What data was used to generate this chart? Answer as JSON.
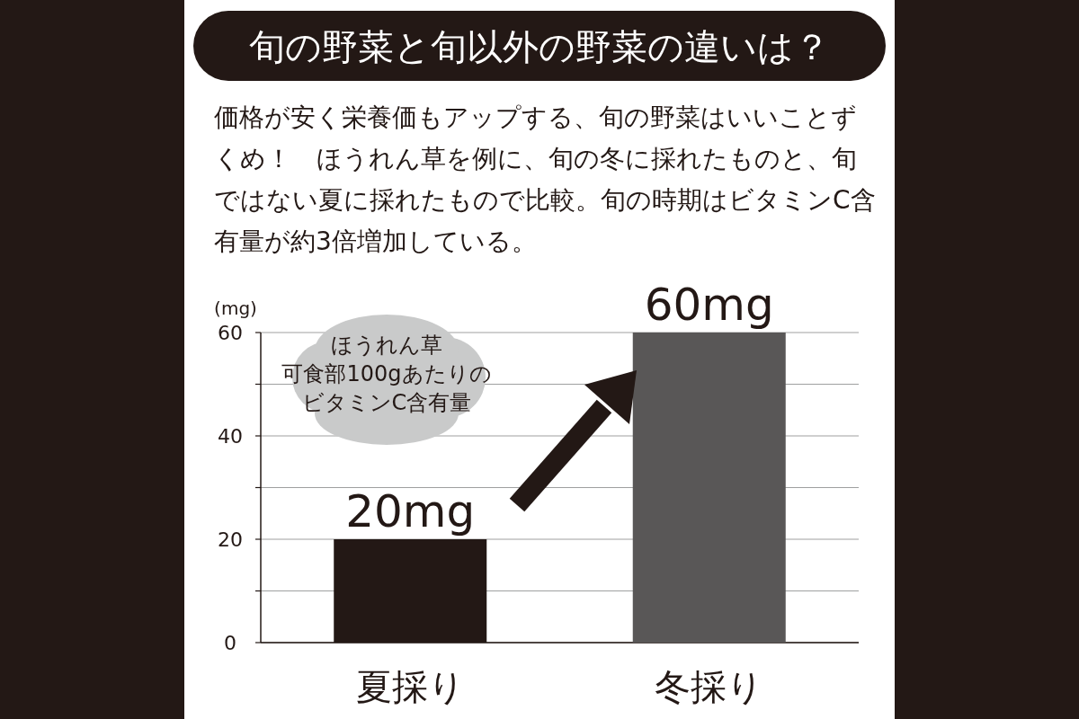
{
  "chart_data": {
    "type": "bar",
    "title": "旬の野菜と旬以外の野菜の違いは？",
    "subtitle": "価格が安く栄養価もアップする、旬の野菜はいいことずくめ！　ほうれん草を例に、旬の冬に採れたものと、旬ではない夏に採れたもので比較。旬の時期はビタミンC含有量が約3倍増加している。",
    "ylabel": "(mg)",
    "categories": [
      "夏採り",
      "冬採り"
    ],
    "values": [
      20,
      60
    ],
    "colors": [
      "#231815",
      "#595757"
    ],
    "value_labels": [
      "20mg",
      "60mg"
    ],
    "ylim": [
      0,
      60
    ],
    "yticks": [
      0,
      {
        "value": 10,
        "label": null
      },
      20,
      {
        "value": 30,
        "label": null
      },
      40,
      {
        "value": 50,
        "label": null
      },
      60
    ],
    "grid": "y",
    "annotations": [
      "ほうれん草",
      "可食部100gあたりの",
      "ビタミンC含有量"
    ]
  }
}
